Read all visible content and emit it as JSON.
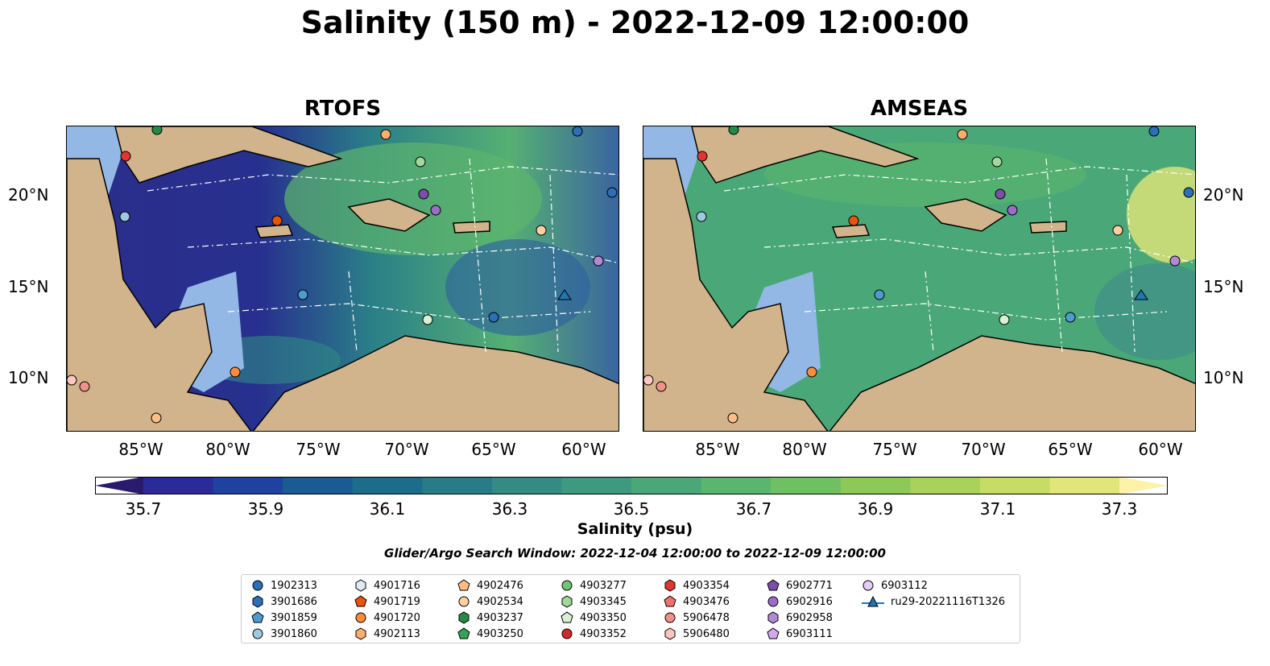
{
  "title": "Salinity (150 m) - 2022-12-09 12:00:00",
  "panels": [
    {
      "title": "RTOFS"
    },
    {
      "title": "AMSEAS"
    }
  ],
  "axes": {
    "lon_ticks": [
      "85°W",
      "80°W",
      "75°W",
      "70°W",
      "65°W",
      "60°W"
    ],
    "lat_ticks": [
      "20°N",
      "15°N",
      "10°N"
    ]
  },
  "colorbar": {
    "label": "Salinity (psu)",
    "ticks": [
      "35.7",
      "35.9",
      "36.1",
      "36.3",
      "36.5",
      "36.7",
      "36.9",
      "37.1",
      "37.3"
    ],
    "colormap": "haline",
    "range": [
      35.6,
      37.4
    ],
    "colors": [
      "#2a1a6e",
      "#2a2a9a",
      "#1f42a0",
      "#1a5b94",
      "#1c6c8c",
      "#277c87",
      "#338b84",
      "#3d9a80",
      "#4aa878",
      "#5ab56d",
      "#6fc062",
      "#8bca57",
      "#a8d358",
      "#c6dc63",
      "#e2e577",
      "#fdf3a8"
    ]
  },
  "search_window": "Glider/Argo Search Window: 2022-12-04 12:00:00 to 2022-12-09 12:00:00",
  "legend": [
    {
      "label": "1902313",
      "shape": "circle",
      "color": "#2a6fb8"
    },
    {
      "label": "3901686",
      "shape": "hexagon",
      "color": "#2a6fb8"
    },
    {
      "label": "3901859",
      "shape": "pentagon",
      "color": "#4f9bd0"
    },
    {
      "label": "3901860",
      "shape": "circle",
      "color": "#9ecae1"
    },
    {
      "label": "4901716",
      "shape": "hexagon",
      "color": "#deebf7"
    },
    {
      "label": "4901719",
      "shape": "pentagon",
      "color": "#e6550d"
    },
    {
      "label": "4901720",
      "shape": "circle",
      "color": "#fd8d3c"
    },
    {
      "label": "4902113",
      "shape": "hexagon",
      "color": "#fdae6b"
    },
    {
      "label": "4902476",
      "shape": "pentagon",
      "color": "#fdbe85"
    },
    {
      "label": "4902534",
      "shape": "circle",
      "color": "#fdd0a2"
    },
    {
      "label": "4903237",
      "shape": "hexagon",
      "color": "#238b45"
    },
    {
      "label": "4903250",
      "shape": "pentagon",
      "color": "#31a354"
    },
    {
      "label": "4903277",
      "shape": "circle",
      "color": "#74c476"
    },
    {
      "label": "4903345",
      "shape": "hexagon",
      "color": "#a1d99b"
    },
    {
      "label": "4903350",
      "shape": "pentagon",
      "color": "#d9f0d3"
    },
    {
      "label": "4903352",
      "shape": "circle",
      "color": "#d62728"
    },
    {
      "label": "4903354",
      "shape": "hexagon",
      "color": "#e03531"
    },
    {
      "label": "4903476",
      "shape": "pentagon",
      "color": "#f07070"
    },
    {
      "label": "5906478",
      "shape": "circle",
      "color": "#f4908a"
    },
    {
      "label": "5906480",
      "shape": "hexagon",
      "color": "#fcc5c0"
    },
    {
      "label": "6902771",
      "shape": "pentagon",
      "color": "#7b4fa8"
    },
    {
      "label": "6902916",
      "shape": "circle",
      "color": "#9e6cc8"
    },
    {
      "label": "6902958",
      "shape": "hexagon",
      "color": "#b08ad6"
    },
    {
      "label": "6903111",
      "shape": "pentagon",
      "color": "#d2a9ec"
    },
    {
      "label": "6903112",
      "shape": "circle",
      "color": "#e8ccf8"
    },
    {
      "label": "ru29-20221116T1326",
      "shape": "triangle-line",
      "color": "#1f77b4"
    }
  ],
  "map_colors": {
    "land": "#d2b48c",
    "shelf": "#94b8e6",
    "rtofs_west": "#2b2d8a",
    "rtofs_east": "#3f9f86",
    "amseas_main": "#4aa878"
  }
}
